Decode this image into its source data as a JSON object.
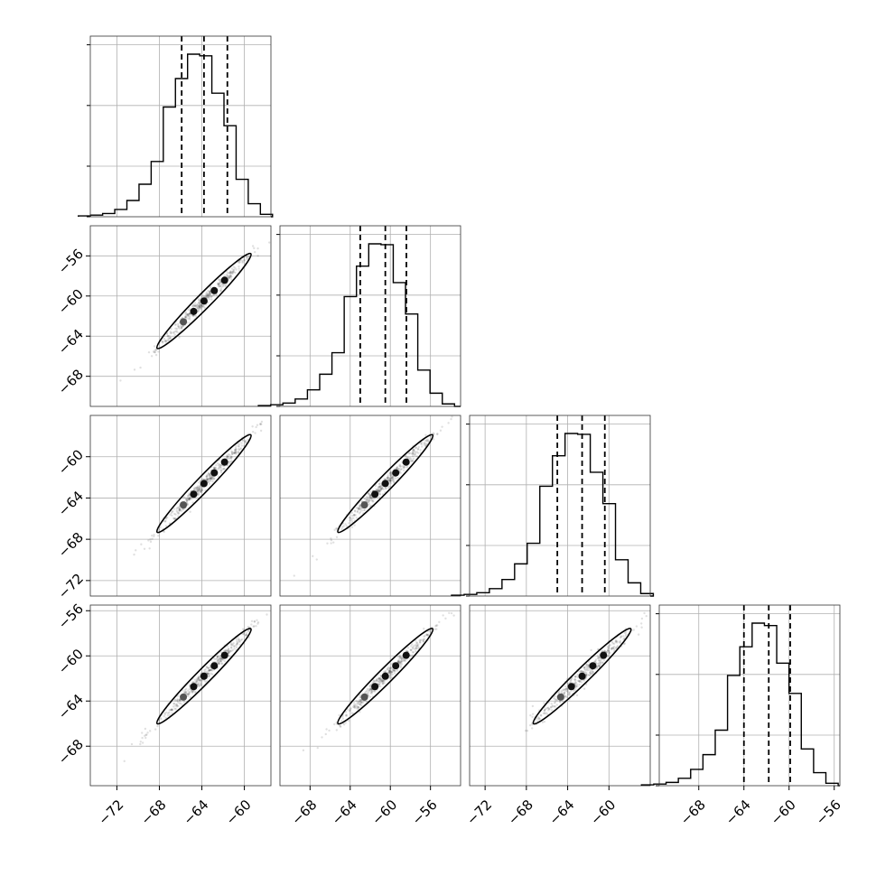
{
  "chart_data": {
    "type": "corner",
    "title": "",
    "n_parameters": 4,
    "parameters": [
      {
        "label": "",
        "range": [
          -74.5,
          -57.5
        ],
        "quantiles": [
          -65.9,
          -63.8,
          -61.6
        ],
        "grid": [
          -72,
          -68,
          -64,
          -60
        ]
      },
      {
        "label": "",
        "range": [
          -71.0,
          -53.0
        ],
        "quantiles": [
          -63.0,
          -60.5,
          -58.4
        ],
        "grid": [
          -68,
          -64,
          -60,
          -56
        ]
      },
      {
        "label": "",
        "range": [
          -73.5,
          -56.0
        ],
        "quantiles": [
          -65.0,
          -62.6,
          -60.4
        ],
        "grid": [
          -72,
          -68,
          -64,
          -60
        ]
      },
      {
        "label": "",
        "range": [
          -71.5,
          -55.5
        ],
        "quantiles": [
          -64.0,
          -61.8,
          -59.9
        ],
        "grid": [
          -68,
          -64,
          -60,
          -56
        ]
      }
    ],
    "histograms": [
      [
        1,
        2,
        4,
        9,
        20,
        40,
        68,
        135,
        170,
        200,
        198,
        152,
        112,
        46,
        16,
        3
      ],
      [
        1,
        2,
        4,
        9,
        20,
        39,
        65,
        133,
        170,
        197,
        196,
        150,
        112,
        44,
        16,
        3
      ],
      [
        1,
        2,
        4,
        9,
        20,
        39,
        64,
        133,
        170,
        197,
        196,
        150,
        112,
        44,
        16,
        3
      ],
      [
        1,
        2,
        4,
        9,
        20,
        38,
        68,
        135,
        170,
        199,
        196,
        150,
        113,
        45,
        16,
        3
      ]
    ],
    "correlations": [
      [
        1,
        0.99,
        0.99,
        0.99
      ],
      [
        0.99,
        1,
        0.99,
        0.99
      ],
      [
        0.99,
        0.99,
        1,
        0.98
      ],
      [
        0.99,
        0.99,
        0.98,
        1
      ]
    ],
    "y_ticks": {
      "row1": [
        "−56",
        "−60",
        "−64",
        "−68"
      ],
      "row2": [
        "−60",
        "−64",
        "−68",
        "−72"
      ],
      "row3": [
        "−56",
        "−60",
        "−64",
        "−68"
      ]
    },
    "x_ticks": {
      "col0": [
        "−72",
        "−68",
        "−64",
        "−60"
      ],
      "col1": [
        "−68",
        "−64",
        "−60",
        "−56"
      ],
      "col2": [
        "−72",
        "−68",
        "−64",
        "−60"
      ],
      "col3": [
        "−68",
        "−64",
        "−60",
        "−56"
      ]
    },
    "grid": true
  }
}
